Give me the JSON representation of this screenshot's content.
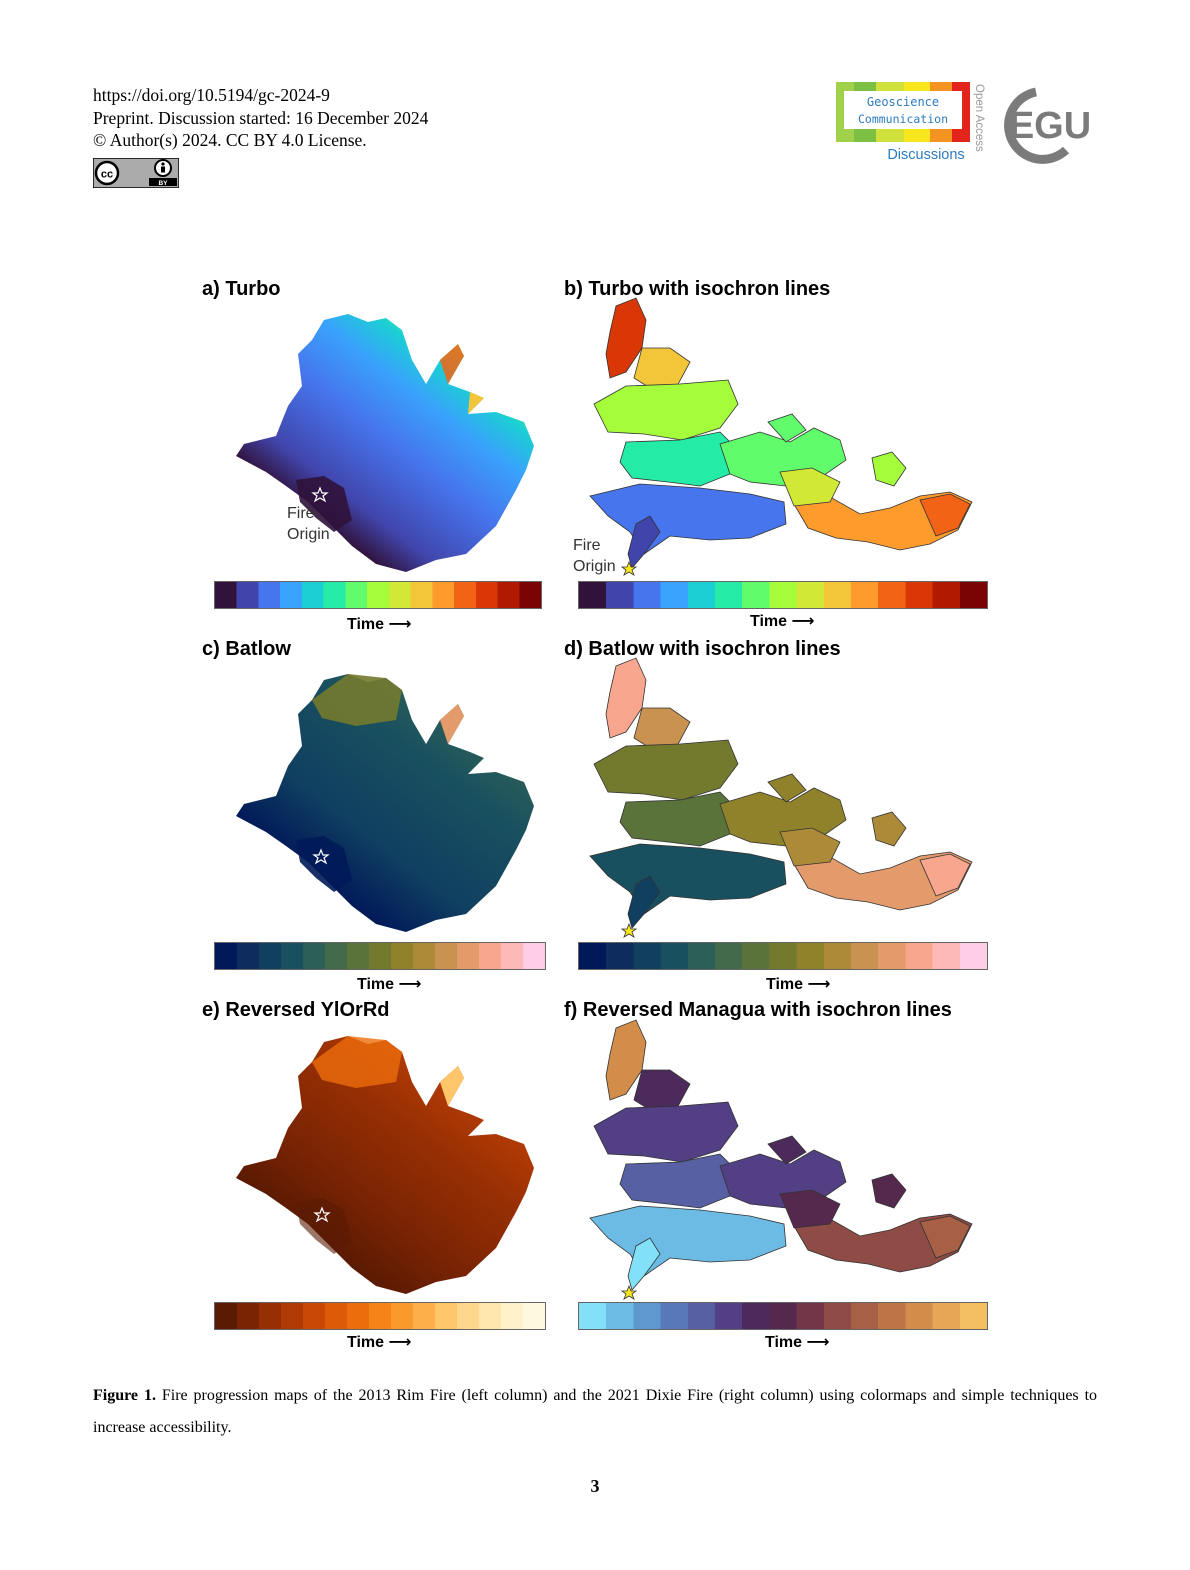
{
  "header": {
    "doi": "https://doi.org/10.5194/gc-2024-9",
    "preprint": "Preprint. Discussion started: 16 December 2024",
    "copyright": "© Author(s) 2024. CC BY 4.0 License."
  },
  "logo": {
    "line1": "Geoscience",
    "line2": "Communication",
    "discussions": "Discussions",
    "open_access": "Open Access",
    "egu": "EGU",
    "cc": "cc",
    "by": "BY"
  },
  "panels": [
    {
      "title": "a) Turbo",
      "time_label": "Time",
      "colormap": [
        "#30123b",
        "#4145ab",
        "#4675ed",
        "#39a2fc",
        "#1bcfd4",
        "#24eca6",
        "#61fc6c",
        "#a4fc3b",
        "#d1e834",
        "#f3c63a",
        "#fe9b2d",
        "#f36315",
        "#d93806",
        "#b11901",
        "#7a0403"
      ],
      "origin": [
        "Fire",
        "Origin"
      ]
    },
    {
      "title": "b) Turbo with isochron lines",
      "time_label": "Time",
      "colormap": [
        "#30123b",
        "#4145ab",
        "#4675ed",
        "#39a2fc",
        "#1bcfd4",
        "#24eca6",
        "#61fc6c",
        "#a4fc3b",
        "#d1e834",
        "#f3c63a",
        "#fe9b2d",
        "#f36315",
        "#d93806",
        "#b11901",
        "#7a0403"
      ],
      "origin": [
        "Fire",
        "Origin"
      ]
    },
    {
      "title": "c) Batlow",
      "time_label": "Time",
      "colormap": [
        "#011959",
        "#0e2d5e",
        "#103f60",
        "#19505f",
        "#2b5e57",
        "#436a4a",
        "#5a733b",
        "#737a2e",
        "#8f822b",
        "#ac8a38",
        "#c99250",
        "#e49b6b",
        "#f8a68e",
        "#fdb8b8",
        "#fccde5"
      ]
    },
    {
      "title": "d) Batlow with isochron lines",
      "time_label": "Time",
      "colormap": [
        "#011959",
        "#0e2d5e",
        "#103f60",
        "#19505f",
        "#2b5e57",
        "#436a4a",
        "#5a733b",
        "#737a2e",
        "#8f822b",
        "#ac8a38",
        "#c99250",
        "#e49b6b",
        "#f8a68e",
        "#fdb8b8",
        "#fccde5"
      ]
    },
    {
      "title": "e) Reversed YlOrRd",
      "time_label": "Time",
      "colormap": [
        "#5a1a03",
        "#7a2404",
        "#972f04",
        "#b03a05",
        "#c94806",
        "#dd5a08",
        "#ec6d0c",
        "#f68318",
        "#fb9a2c",
        "#fdb04a",
        "#fec56a",
        "#ffd78c",
        "#ffe6ad",
        "#fff1c8",
        "#fff8e0"
      ]
    },
    {
      "title": "f) Reversed Managua with isochron lines",
      "time_label": "Time",
      "colormap": [
        "#82e0f8",
        "#6bbbe4",
        "#5e98cf",
        "#5878ba",
        "#5660a3",
        "#533f83",
        "#4c2a5c",
        "#55294d",
        "#733648",
        "#8f4b46",
        "#a75f46",
        "#bd7547",
        "#d38d4b",
        "#e6a655",
        "#f4be63"
      ]
    }
  ],
  "caption": {
    "label": "Figure 1.",
    "text": " Fire progression maps of the 2013 Rim Fire (left column) and the 2021 Dixie Fire (right column) using colormaps and simple techniques to increase accessibility."
  },
  "page_number": "3"
}
